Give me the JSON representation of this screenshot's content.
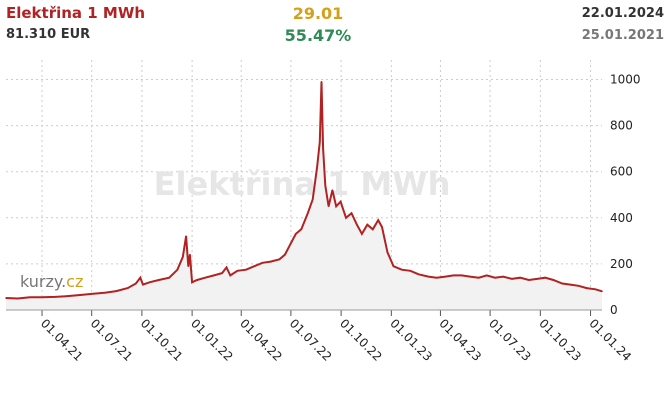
{
  "header": {
    "title": "Elektřina 1 MWh",
    "price": "81.310 EUR",
    "change": "29.01",
    "change_pct": "55.47%",
    "date_current": "22.01.2024",
    "date_start": "25.01.2021"
  },
  "colors": {
    "line": "#b22222",
    "area": "#f2f2f2",
    "grid": "#cccccc",
    "title": "#b22222",
    "change": "#d4a017",
    "change_pct": "#2e8b57",
    "watermark": "#e6e6e6"
  },
  "watermark": "Elektřina 1 MWh",
  "logo": {
    "kurzy": "kurzy",
    "dot": ".",
    "cz": "cz",
    "kurzy_color": "#777777",
    "cz_color": "#d4a017"
  },
  "chart_data": {
    "type": "area",
    "ylim": [
      0,
      1050
    ],
    "yticks": [
      0,
      200,
      400,
      600,
      800,
      1000
    ],
    "ytick_labels": [
      "0",
      "200",
      "400",
      "600",
      "800",
      "1000"
    ],
    "xlim": [
      "2021-01-25",
      "2024-01-22"
    ],
    "xticks": [
      "2021-04-01",
      "2021-07-01",
      "2021-10-01",
      "2022-01-01",
      "2022-04-01",
      "2022-07-01",
      "2022-10-01",
      "2023-01-01",
      "2023-04-01",
      "2023-07-01",
      "2023-10-01",
      "2024-01-01"
    ],
    "xtick_labels": [
      "01.04.21",
      "01.07.21",
      "01.10.21",
      "01.01.22",
      "01.04.22",
      "01.07.22",
      "01.10.22",
      "01.01.23",
      "01.04.23",
      "01.07.23",
      "01.10.23",
      "01.01.24"
    ],
    "grid": true,
    "points": [
      [
        "2021-01-25",
        52
      ],
      [
        "2021-02-15",
        50
      ],
      [
        "2021-03-10",
        55
      ],
      [
        "2021-04-01",
        55
      ],
      [
        "2021-04-25",
        57
      ],
      [
        "2021-05-15",
        60
      ],
      [
        "2021-06-10",
        65
      ],
      [
        "2021-07-01",
        70
      ],
      [
        "2021-07-25",
        75
      ],
      [
        "2021-08-15",
        82
      ],
      [
        "2021-09-05",
        95
      ],
      [
        "2021-09-20",
        115
      ],
      [
        "2021-09-28",
        140
      ],
      [
        "2021-10-03",
        110
      ],
      [
        "2021-10-15",
        120
      ],
      [
        "2021-11-01",
        130
      ],
      [
        "2021-11-20",
        140
      ],
      [
        "2021-12-05",
        175
      ],
      [
        "2021-12-15",
        230
      ],
      [
        "2021-12-21",
        320
      ],
      [
        "2021-12-25",
        190
      ],
      [
        "2021-12-28",
        240
      ],
      [
        "2022-01-01",
        120
      ],
      [
        "2022-01-10",
        130
      ],
      [
        "2022-01-25",
        140
      ],
      [
        "2022-02-10",
        150
      ],
      [
        "2022-02-25",
        160
      ],
      [
        "2022-03-05",
        185
      ],
      [
        "2022-03-12",
        150
      ],
      [
        "2022-03-25",
        170
      ],
      [
        "2022-04-10",
        175
      ],
      [
        "2022-04-25",
        190
      ],
      [
        "2022-05-10",
        205
      ],
      [
        "2022-05-25",
        210
      ],
      [
        "2022-06-10",
        220
      ],
      [
        "2022-06-20",
        240
      ],
      [
        "2022-07-01",
        290
      ],
      [
        "2022-07-10",
        330
      ],
      [
        "2022-07-20",
        350
      ],
      [
        "2022-08-01",
        420
      ],
      [
        "2022-08-10",
        480
      ],
      [
        "2022-08-18",
        620
      ],
      [
        "2022-08-23",
        730
      ],
      [
        "2022-08-26",
        990
      ],
      [
        "2022-08-29",
        700
      ],
      [
        "2022-09-02",
        540
      ],
      [
        "2022-09-08",
        450
      ],
      [
        "2022-09-15",
        520
      ],
      [
        "2022-09-22",
        450
      ],
      [
        "2022-09-30",
        470
      ],
      [
        "2022-10-10",
        400
      ],
      [
        "2022-10-20",
        420
      ],
      [
        "2022-10-30",
        370
      ],
      [
        "2022-11-08",
        330
      ],
      [
        "2022-11-18",
        370
      ],
      [
        "2022-11-28",
        350
      ],
      [
        "2022-12-08",
        390
      ],
      [
        "2022-12-15",
        360
      ],
      [
        "2022-12-25",
        250
      ],
      [
        "2023-01-05",
        190
      ],
      [
        "2023-01-20",
        175
      ],
      [
        "2023-02-05",
        170
      ],
      [
        "2023-02-20",
        155
      ],
      [
        "2023-03-10",
        145
      ],
      [
        "2023-03-25",
        140
      ],
      [
        "2023-04-10",
        145
      ],
      [
        "2023-04-25",
        150
      ],
      [
        "2023-05-10",
        150
      ],
      [
        "2023-05-25",
        145
      ],
      [
        "2023-06-10",
        140
      ],
      [
        "2023-06-25",
        150
      ],
      [
        "2023-07-10",
        140
      ],
      [
        "2023-07-25",
        145
      ],
      [
        "2023-08-10",
        135
      ],
      [
        "2023-08-25",
        140
      ],
      [
        "2023-09-10",
        130
      ],
      [
        "2023-09-25",
        135
      ],
      [
        "2023-10-10",
        140
      ],
      [
        "2023-10-25",
        130
      ],
      [
        "2023-11-10",
        115
      ],
      [
        "2023-11-25",
        110
      ],
      [
        "2023-12-10",
        105
      ],
      [
        "2023-12-25",
        95
      ],
      [
        "2024-01-10",
        90
      ],
      [
        "2024-01-22",
        81
      ]
    ]
  }
}
